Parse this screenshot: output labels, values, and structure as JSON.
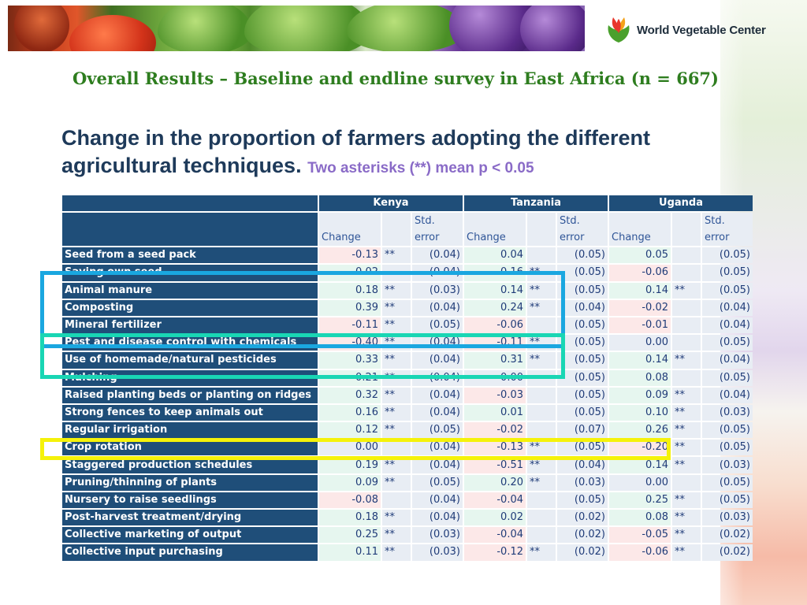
{
  "logo": {
    "text": "World Vegetable Center",
    "mark_colors": [
      "#e8372c",
      "#f4a21b",
      "#4aa02c"
    ]
  },
  "slide_title": "Overall Results – Baseline and endline survey in East Africa (n = 667)",
  "heading": {
    "main": "Change in the proportion of farmers adopting the different agricultural techniques.",
    "note": "Two asterisks (**) mean p < 0.05"
  },
  "table": {
    "countries": [
      "Kenya",
      "Tanzania",
      "Uganda"
    ],
    "subheaders": {
      "change": "Change",
      "se": "Std. error"
    },
    "rows": [
      {
        "label": "Seed from a seed pack",
        "kenya": [
          "-0.13",
          "**",
          "(0.04)"
        ],
        "tanzania": [
          "0.04",
          "",
          "(0.05)"
        ],
        "uganda": [
          "0.05",
          "",
          "(0.05)"
        ]
      },
      {
        "label": "Saving own seed",
        "kenya": [
          "0.02",
          "",
          "(0.04)"
        ],
        "tanzania": [
          "0.16",
          "**",
          "(0.05)"
        ],
        "uganda": [
          "-0.06",
          "",
          "(0.05)"
        ]
      },
      {
        "label": "Animal manure",
        "kenya": [
          "0.18",
          "**",
          "(0.03)"
        ],
        "tanzania": [
          "0.14",
          "**",
          "(0.05)"
        ],
        "uganda": [
          "0.14",
          "**",
          "(0.05)"
        ]
      },
      {
        "label": "Composting",
        "kenya": [
          "0.39",
          "**",
          "(0.04)"
        ],
        "tanzania": [
          "0.24",
          "**",
          "(0.04)"
        ],
        "uganda": [
          "-0.02",
          "",
          "(0.04)"
        ]
      },
      {
        "label": "Mineral fertilizer",
        "kenya": [
          "-0.11",
          "**",
          "(0.05)"
        ],
        "tanzania": [
          "-0.06",
          "",
          "(0.05)"
        ],
        "uganda": [
          "-0.01",
          "",
          "(0.04)"
        ]
      },
      {
        "label": "Pest and disease control with chemicals",
        "kenya": [
          "-0.40",
          "**",
          "(0.04)"
        ],
        "tanzania": [
          "-0.11",
          "**",
          "(0.05)"
        ],
        "uganda": [
          "0.00",
          "",
          "(0.05)"
        ]
      },
      {
        "label": "Use of homemade/natural pesticides",
        "kenya": [
          "0.33",
          "**",
          "(0.04)"
        ],
        "tanzania": [
          "0.31",
          "**",
          "(0.05)"
        ],
        "uganda": [
          "0.14",
          "**",
          "(0.04)"
        ]
      },
      {
        "label": "Mulching",
        "kenya": [
          "0.21",
          "**",
          "(0.04)"
        ],
        "tanzania": [
          "0.00",
          "",
          "(0.05)"
        ],
        "uganda": [
          "0.08",
          "",
          "(0.05)"
        ]
      },
      {
        "label": "Raised planting beds or planting on ridges",
        "kenya": [
          "0.32",
          "**",
          "(0.04)"
        ],
        "tanzania": [
          "-0.03",
          "",
          "(0.05)"
        ],
        "uganda": [
          "0.09",
          "**",
          "(0.04)"
        ]
      },
      {
        "label": "Strong fences to keep animals out",
        "kenya": [
          "0.16",
          "**",
          "(0.04)"
        ],
        "tanzania": [
          "0.01",
          "",
          "(0.05)"
        ],
        "uganda": [
          "0.10",
          "**",
          "(0.03)"
        ]
      },
      {
        "label": "Regular irrigation",
        "kenya": [
          "0.12",
          "**",
          "(0.05)"
        ],
        "tanzania": [
          "-0.02",
          "",
          "(0.07)"
        ],
        "uganda": [
          "0.26",
          "**",
          "(0.05)"
        ]
      },
      {
        "label": "Crop rotation",
        "kenya": [
          "0.00",
          "",
          "(0.04)"
        ],
        "tanzania": [
          "-0.13",
          "**",
          "(0.05)"
        ],
        "uganda": [
          "-0.20",
          "**",
          "(0.05)"
        ]
      },
      {
        "label": "Staggered production schedules",
        "kenya": [
          "0.19",
          "**",
          "(0.04)"
        ],
        "tanzania": [
          "-0.51",
          "**",
          "(0.04)"
        ],
        "uganda": [
          "0.14",
          "**",
          "(0.03)"
        ]
      },
      {
        "label": "Pruning/thinning of plants",
        "kenya": [
          "0.09",
          "**",
          "(0.05)"
        ],
        "tanzania": [
          "0.20",
          "**",
          "(0.03)"
        ],
        "uganda": [
          "0.00",
          "",
          "(0.05)"
        ]
      },
      {
        "label": "Nursery to raise seedlings",
        "kenya": [
          "-0.08",
          "",
          "(0.04)"
        ],
        "tanzania": [
          "-0.04",
          "",
          "(0.05)"
        ],
        "uganda": [
          "0.25",
          "**",
          "(0.05)"
        ]
      },
      {
        "label": "Post-harvest treatment/drying",
        "kenya": [
          "0.18",
          "**",
          "(0.04)"
        ],
        "tanzania": [
          "0.02",
          "",
          "(0.02)"
        ],
        "uganda": [
          "0.08",
          "**",
          "(0.03)"
        ]
      },
      {
        "label": "Collective marketing of output",
        "kenya": [
          "0.25",
          "**",
          "(0.03)"
        ],
        "tanzania": [
          "-0.04",
          "",
          "(0.02)"
        ],
        "uganda": [
          "-0.05",
          "**",
          "(0.02)"
        ]
      },
      {
        "label": "Collective input purchasing",
        "kenya": [
          "0.11",
          "**",
          "(0.03)"
        ],
        "tanzania": [
          "-0.12",
          "**",
          "(0.02)"
        ],
        "uganda": [
          "-0.06",
          "**",
          "(0.02)"
        ]
      }
    ]
  },
  "highlight_colors": {
    "blue": "#1aa7e0",
    "teal": "#19d6b4",
    "yellow": "#f5f20a"
  }
}
